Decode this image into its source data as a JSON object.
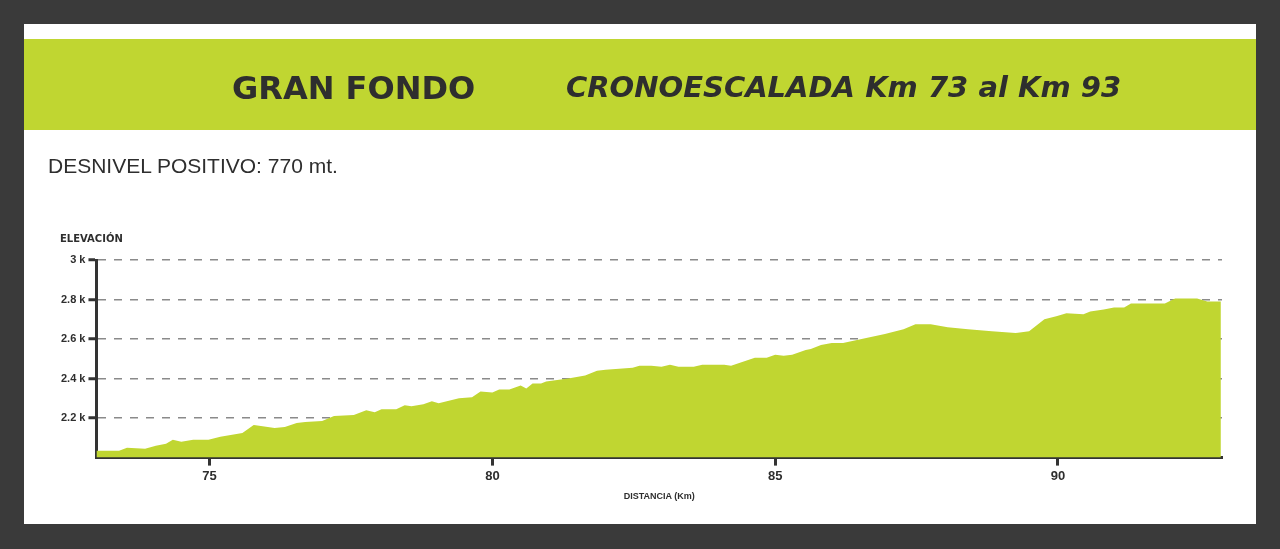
{
  "chart_data": {
    "type": "area",
    "title": "GRAN FONDO",
    "subtitle": "CRONOESCALADA Km 73 al Km 93",
    "annotations": [
      "DESNIVEL POSITIVO: 770 mt."
    ],
    "xlabel": "DISTANCIA (Km)",
    "ylabel": "ELEVACIÓN",
    "x": [
      73.0,
      73.4,
      73.54,
      73.86,
      74.05,
      74.23,
      74.35,
      74.5,
      74.71,
      74.98,
      75.19,
      75.58,
      75.78,
      76.15,
      76.33,
      76.54,
      76.69,
      76.99,
      77.2,
      77.55,
      77.77,
      77.92,
      78.04,
      78.3,
      78.45,
      78.57,
      78.78,
      78.93,
      79.05,
      79.41,
      79.64,
      79.79,
      80.0,
      80.12,
      80.3,
      80.5,
      80.6,
      80.71,
      80.86,
      80.95,
      81.34,
      81.64,
      81.85,
      82.0,
      82.48,
      82.6,
      82.81,
      82.99,
      83.14,
      83.29,
      83.56,
      83.71,
      84.1,
      84.22,
      84.64,
      84.85,
      85.0,
      85.15,
      85.3,
      85.54,
      85.63,
      85.81,
      86.0,
      86.2,
      86.61,
      86.94,
      87.27,
      87.48,
      87.75,
      88.05,
      88.41,
      88.83,
      89.25,
      89.49,
      89.76,
      89.97,
      90.15,
      90.45,
      90.57,
      90.81,
      90.99,
      91.17,
      91.29,
      91.89,
      92.07,
      92.46,
      92.64,
      92.88
    ],
    "series": [
      {
        "color": "#c0d631",
        "values": [
          2035,
          2035,
          2050,
          2045,
          2060,
          2070,
          2090,
          2080,
          2090,
          2090,
          2105,
          2125,
          2165,
          2150,
          2155,
          2175,
          2180,
          2185,
          2210,
          2215,
          2240,
          2230,
          2245,
          2245,
          2265,
          2260,
          2270,
          2285,
          2275,
          2300,
          2305,
          2335,
          2330,
          2345,
          2345,
          2365,
          2350,
          2375,
          2375,
          2385,
          2400,
          2415,
          2440,
          2445,
          2455,
          2465,
          2465,
          2460,
          2470,
          2460,
          2460,
          2470,
          2470,
          2465,
          2505,
          2505,
          2520,
          2515,
          2520,
          2545,
          2550,
          2570,
          2580,
          2580,
          2605,
          2625,
          2650,
          2675,
          2675,
          2660,
          2650,
          2640,
          2630,
          2640,
          2700,
          2715,
          2730,
          2725,
          2740,
          2750,
          2760,
          2760,
          2780,
          2780,
          2805,
          2805,
          2790,
          2790
        ]
      }
    ],
    "xlim": [
      73,
      92.9
    ],
    "xticks": [
      75,
      80,
      85,
      90
    ],
    "ylim": [
      2000,
      3000
    ],
    "yticks": [
      {
        "value": 2200,
        "label": "2.2 k"
      },
      {
        "value": 2400,
        "label": "2.4 k"
      },
      {
        "value": 2600,
        "label": "2.6 k"
      },
      {
        "value": 2800,
        "label": "2.8 k"
      },
      {
        "value": 3000,
        "label": "3 k"
      }
    ],
    "grid": "y",
    "legend": false,
    "marker": "none"
  }
}
